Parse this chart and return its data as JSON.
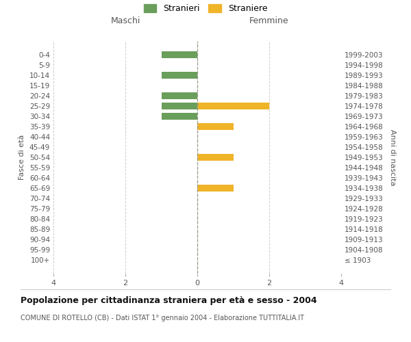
{
  "age_groups": [
    "100+",
    "95-99",
    "90-94",
    "85-89",
    "80-84",
    "75-79",
    "70-74",
    "65-69",
    "60-64",
    "55-59",
    "50-54",
    "45-49",
    "40-44",
    "35-39",
    "30-34",
    "25-29",
    "20-24",
    "15-19",
    "10-14",
    "5-9",
    "0-4"
  ],
  "birth_years": [
    "≤ 1903",
    "1904-1908",
    "1909-1913",
    "1914-1918",
    "1919-1923",
    "1924-1928",
    "1929-1933",
    "1934-1938",
    "1939-1943",
    "1944-1948",
    "1949-1953",
    "1954-1958",
    "1959-1963",
    "1964-1968",
    "1969-1973",
    "1974-1978",
    "1979-1983",
    "1984-1988",
    "1989-1993",
    "1994-1998",
    "1999-2003"
  ],
  "maschi_stranieri": [
    0,
    0,
    0,
    0,
    0,
    0,
    0,
    0,
    0,
    0,
    0,
    0,
    0,
    0,
    1,
    1,
    1,
    0,
    1,
    0,
    1
  ],
  "femmine_straniere": [
    0,
    0,
    0,
    0,
    0,
    0,
    0,
    1,
    0,
    0,
    1,
    0,
    0,
    1,
    0,
    2,
    0,
    0,
    0,
    0,
    0
  ],
  "color_maschi": "#6a9e5b",
  "color_femmine": "#f0b429",
  "title": "Popolazione per cittadinanza straniera per età e sesso - 2004",
  "subtitle": "COMUNE DI ROTELLO (CB) - Dati ISTAT 1° gennaio 2004 - Elaborazione TUTTITALIA.IT",
  "xlabel_left": "Maschi",
  "xlabel_right": "Femmine",
  "ylabel_left": "Fasce di età",
  "ylabel_right": "Anni di nascita",
  "legend_maschi": "Stranieri",
  "legend_femmine": "Straniere",
  "xlim": 4,
  "background_color": "#ffffff",
  "grid_color": "#cccccc"
}
